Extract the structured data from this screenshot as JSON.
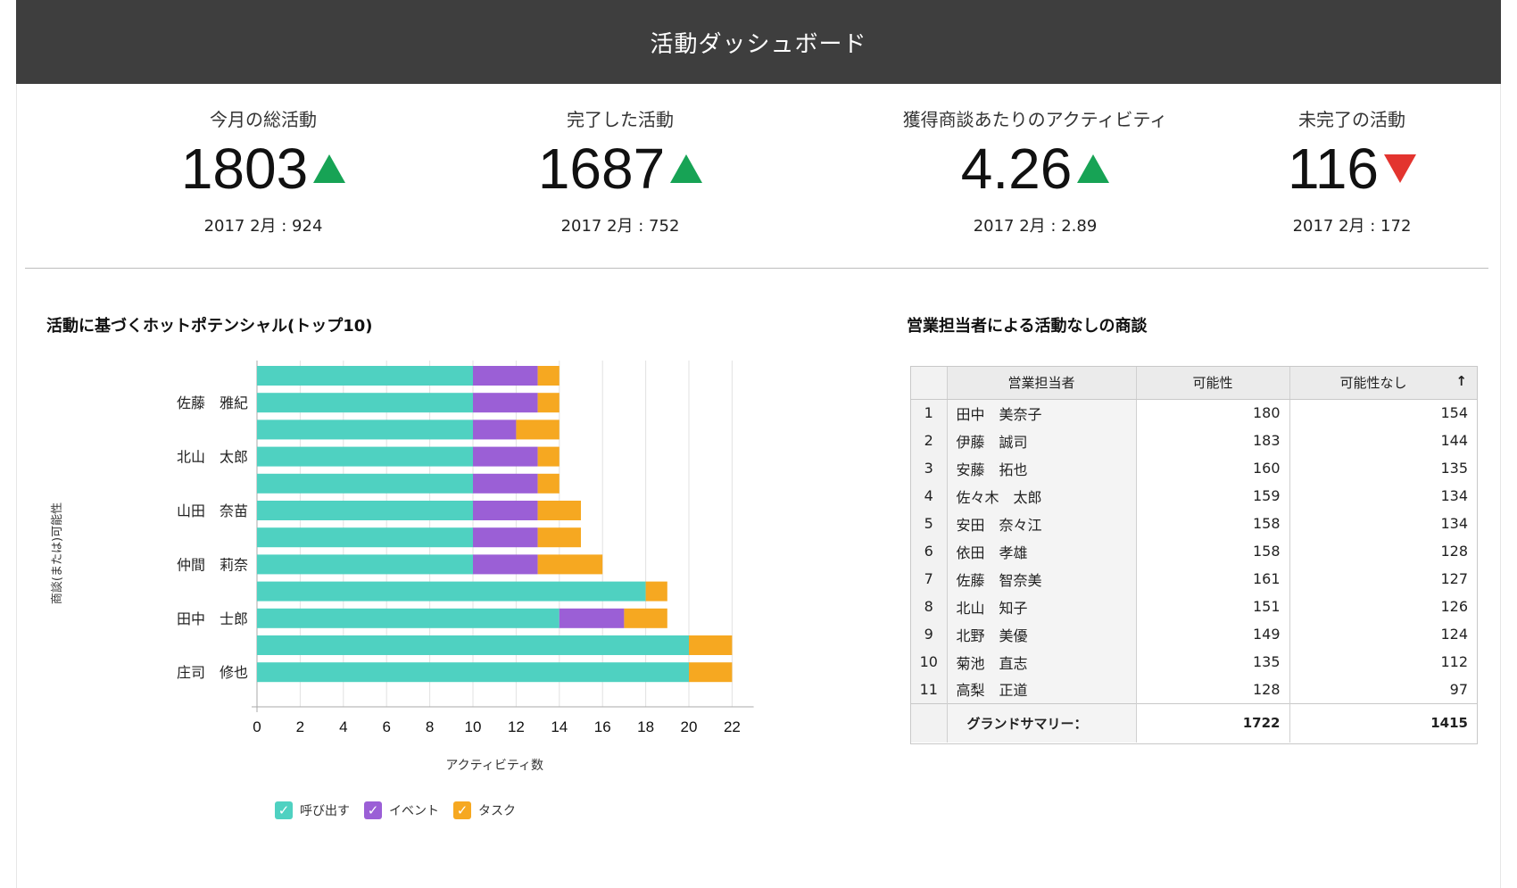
{
  "header": {
    "title": "活動ダッシュボード"
  },
  "kpis": [
    {
      "label": "今月の総活動",
      "value": "1803",
      "trend": "up",
      "sub": "2017 2月 : 924"
    },
    {
      "label": "完了した活動",
      "value": "1687",
      "trend": "up",
      "sub": "2017 2月 : 752"
    },
    {
      "label": "獲得商談あたりのアクティビティ",
      "value": "4.26",
      "trend": "up",
      "sub": "2017 2月 : 2.89"
    },
    {
      "label": "未完了の活動",
      "value": "116",
      "trend": "down",
      "sub": "2017 2月 : 172"
    }
  ],
  "colors": {
    "call": "#4fd1c1",
    "event": "#9b5fd6",
    "task": "#f6a821",
    "up": "#17a355",
    "down": "#e3342f",
    "header": "#3e3e3e"
  },
  "chart": {
    "title": "活動に基づくホットポテンシャル(トップ10)",
    "legend": [
      {
        "label": "呼び出す",
        "color": "#4fd1c1",
        "icon": "check-icon"
      },
      {
        "label": "イベント",
        "color": "#9b5fd6",
        "icon": "check-icon"
      },
      {
        "label": "タスク",
        "color": "#f6a821",
        "icon": "check-icon"
      }
    ]
  },
  "chart_data": {
    "type": "bar",
    "orientation": "horizontal",
    "stacked": true,
    "ylabel": "商談(または)可能性",
    "xlabel": "アクティビティ数",
    "xlim": [
      0,
      22
    ],
    "xticks": [
      0,
      2,
      4,
      6,
      8,
      10,
      12,
      14,
      16,
      18,
      20,
      22
    ],
    "grid": true,
    "category_labels": [
      "佐藤　雅紀",
      "北山　太郎",
      "山田　奈苗",
      "仲間　莉奈",
      "田中　士郎",
      "庄司　修也"
    ],
    "bar_count": 12,
    "series": [
      {
        "name": "呼び出す",
        "values": [
          10,
          10,
          10,
          10,
          10,
          10,
          10,
          10,
          18,
          14,
          20,
          20
        ]
      },
      {
        "name": "イベント",
        "values": [
          3,
          3,
          2,
          3,
          3,
          3,
          3,
          3,
          0,
          3,
          0,
          0
        ]
      },
      {
        "name": "タスク",
        "values": [
          1,
          1,
          2,
          1,
          1,
          2,
          2,
          3,
          1,
          2,
          2,
          2
        ]
      }
    ]
  },
  "table": {
    "title": "営業担当者による活動なしの商談",
    "headers": [
      "営業担当者",
      "可能性",
      "可能性なし"
    ],
    "sort_icon": "sort-up-arrow-icon",
    "rows": [
      {
        "idx": "1",
        "name": "田中　美奈子",
        "a": "180",
        "b": "154"
      },
      {
        "idx": "2",
        "name": "伊藤　誠司",
        "a": "183",
        "b": "144"
      },
      {
        "idx": "3",
        "name": "安藤　拓也",
        "a": "160",
        "b": "135"
      },
      {
        "idx": "4",
        "name": "佐々木　太郎",
        "a": "159",
        "b": "134"
      },
      {
        "idx": "5",
        "name": "安田　奈々江",
        "a": "158",
        "b": "134"
      },
      {
        "idx": "6",
        "name": "依田　孝雄",
        "a": "158",
        "b": "128"
      },
      {
        "idx": "7",
        "name": "佐藤　智奈美",
        "a": "161",
        "b": "127"
      },
      {
        "idx": "8",
        "name": "北山　知子",
        "a": "151",
        "b": "126"
      },
      {
        "idx": "9",
        "name": "北野　美優",
        "a": "149",
        "b": "124"
      },
      {
        "idx": "10",
        "name": "菊池　直志",
        "a": "135",
        "b": "112"
      },
      {
        "idx": "11",
        "name": "高梨　正道",
        "a": "128",
        "b": "97"
      }
    ],
    "total": {
      "label": "グランドサマリー：",
      "a": "1722",
      "b": "1415"
    }
  }
}
